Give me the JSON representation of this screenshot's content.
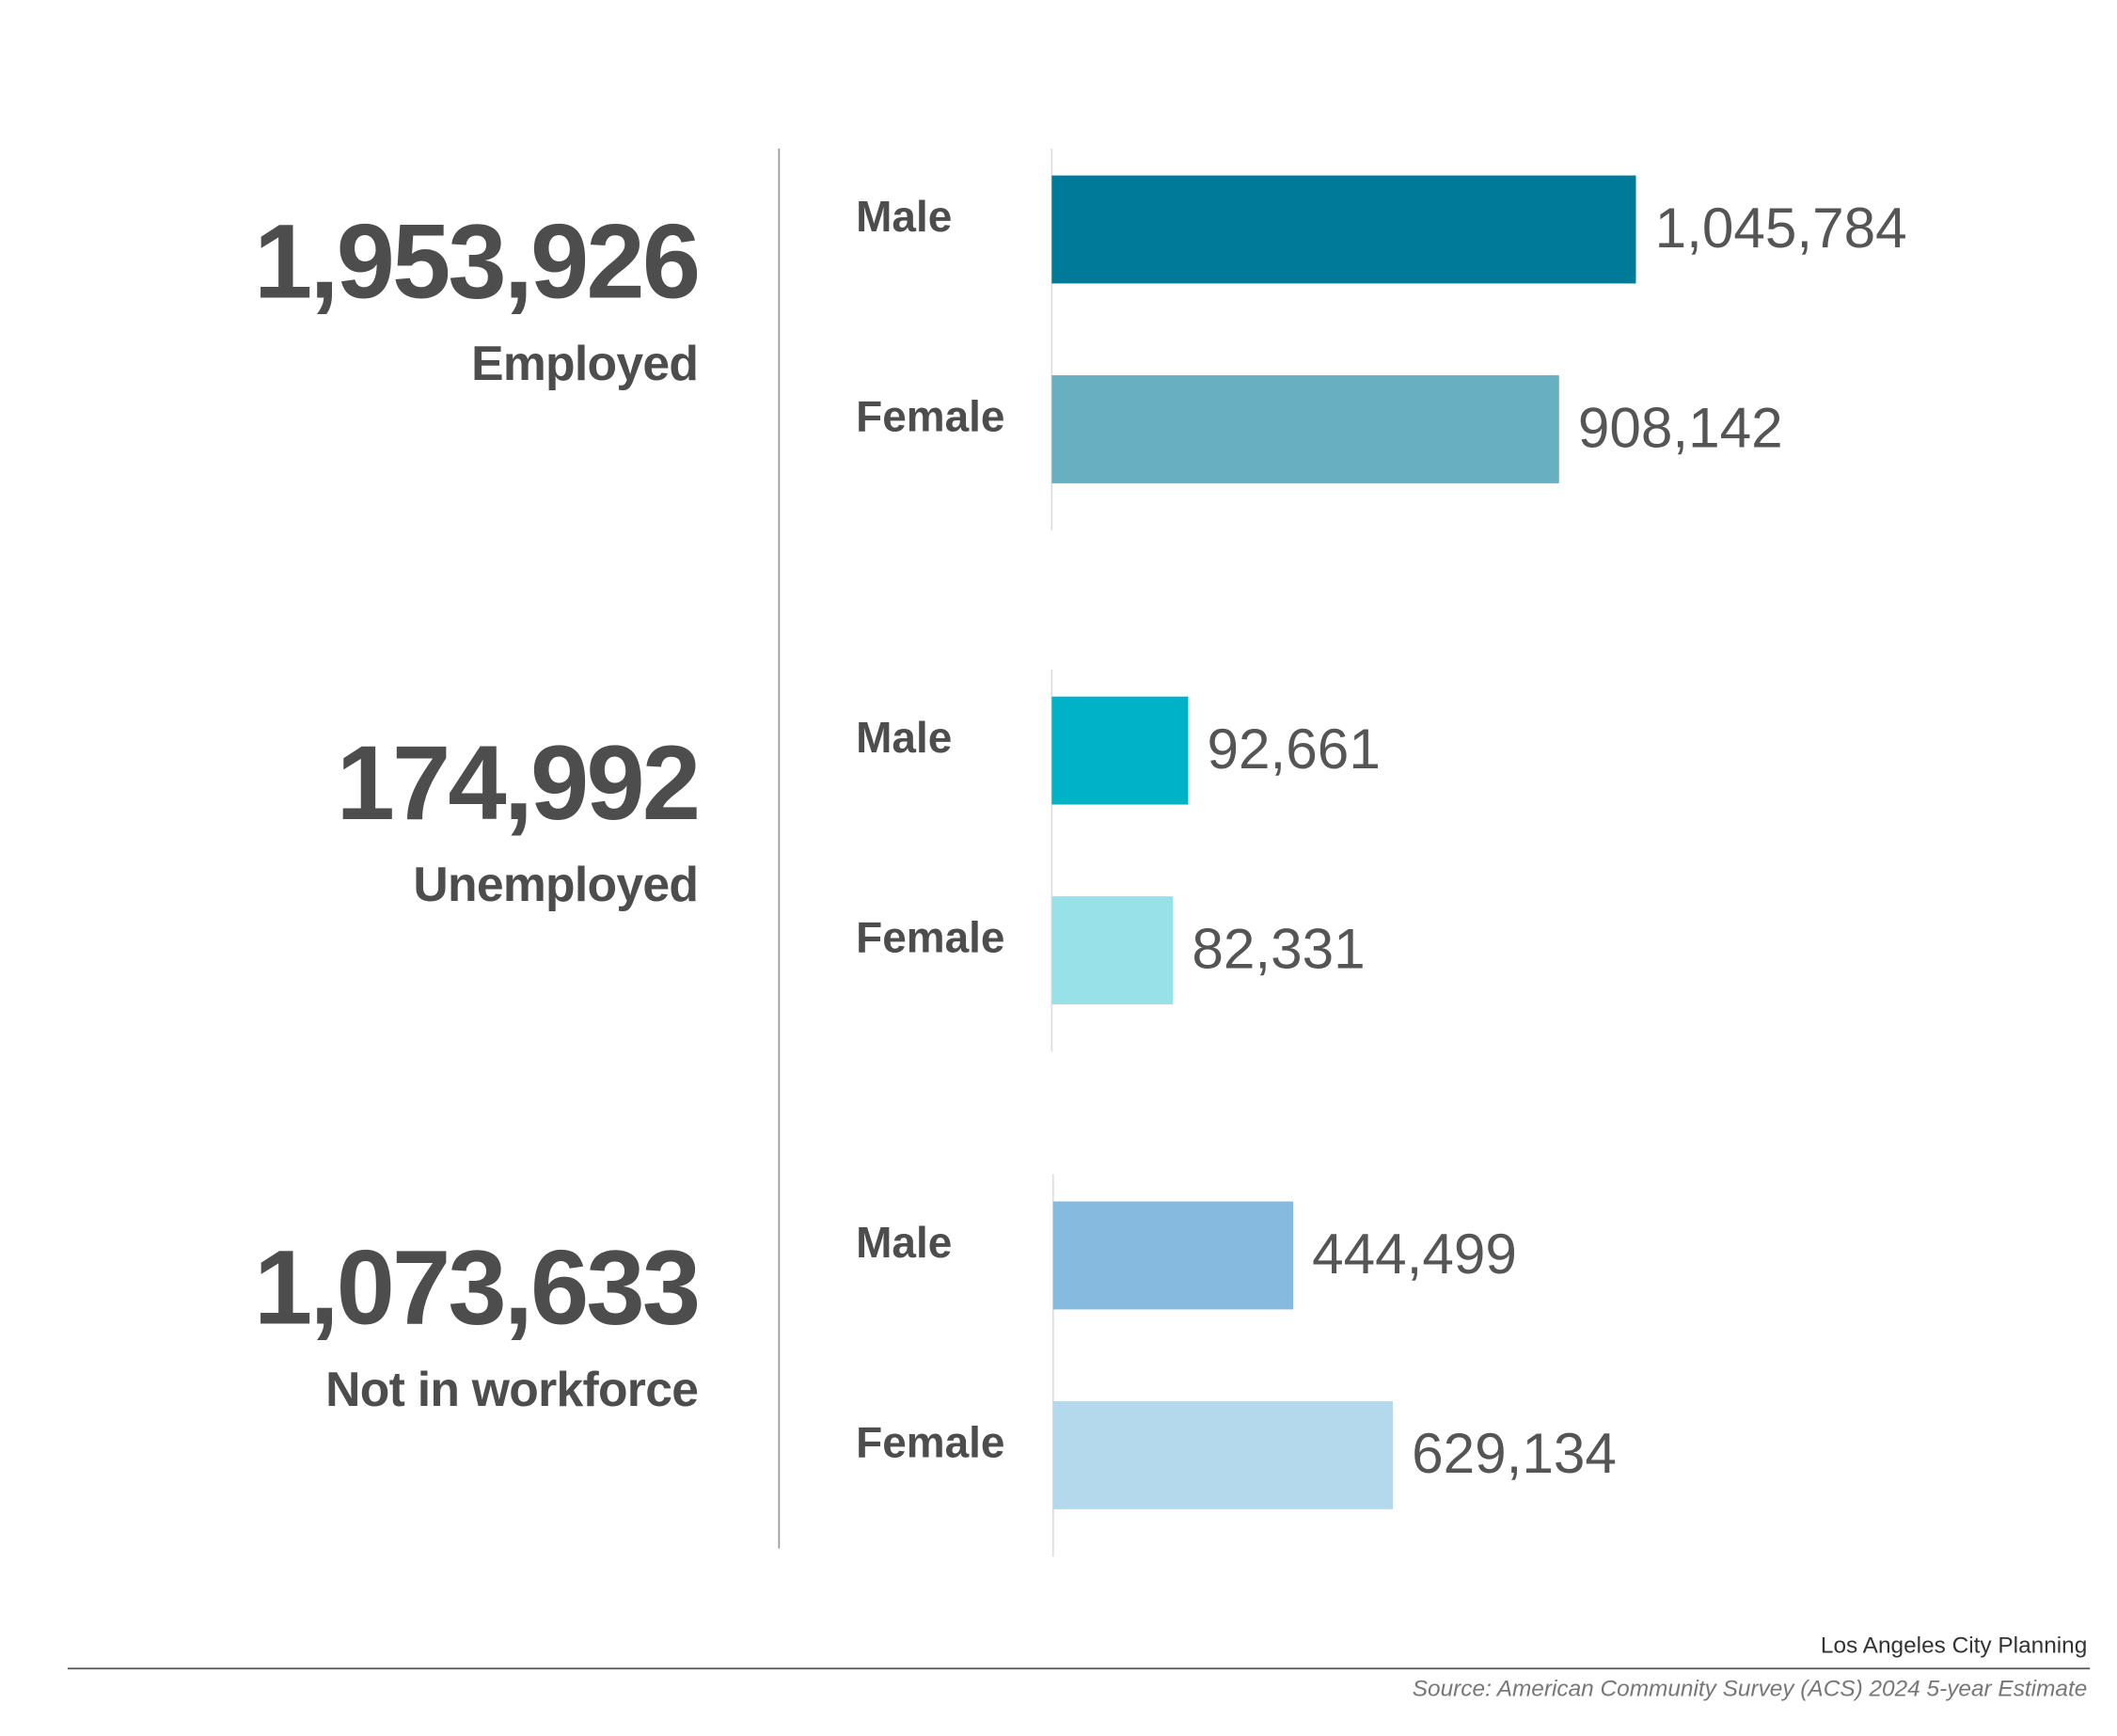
{
  "chart_data": [
    {
      "type": "bar",
      "title": "Employed",
      "total": 1953926,
      "total_label": "1,953,926",
      "categories": [
        "Male",
        "Female"
      ],
      "values": [
        1045784,
        908142
      ],
      "value_labels": [
        "1,045,784",
        "908,142"
      ],
      "colors": [
        "#007a99",
        "#68afc2"
      ],
      "xlim": [
        0,
        1450000
      ]
    },
    {
      "type": "bar",
      "title": "Unemployed",
      "total": 174992,
      "total_label": "174,992",
      "categories": [
        "Male",
        "Female"
      ],
      "values": [
        92661,
        82331
      ],
      "value_labels": [
        "92,661",
        "82,331"
      ],
      "colors": [
        "#00b2c6",
        "#99e1e8"
      ],
      "xlim": [
        0,
        550000
      ]
    },
    {
      "type": "bar",
      "title": "Not in workforce",
      "total": 1073633,
      "total_label": "1,073,633",
      "categories": [
        "Male",
        "Female"
      ],
      "values": [
        444499,
        629134
      ],
      "value_labels": [
        "444,499",
        "629,134"
      ],
      "colors": [
        "#86bade",
        "#b4d8ec"
      ],
      "xlim": [
        0,
        1500000
      ]
    }
  ],
  "credit": "Los Angeles City Planning",
  "source": "Source: American Community Survey (ACS) 2024 5-year Estimate"
}
